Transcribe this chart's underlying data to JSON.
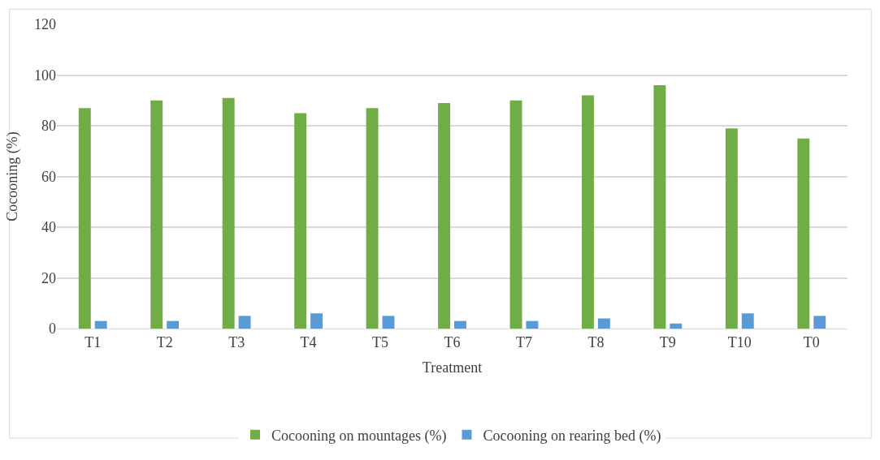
{
  "chart_data": {
    "type": "bar",
    "xlabel": "Treatment",
    "ylabel": "Cocooning (%)",
    "categories": [
      "T1",
      "T2",
      "T3",
      "T4",
      "T5",
      "T6",
      "T7",
      "T8",
      "T9",
      "T10",
      "T0"
    ],
    "series": [
      {
        "name": "Cocooning on mountages (%)",
        "color": "#70ad47",
        "values": [
          87,
          90,
          91,
          85,
          87,
          89,
          90,
          92,
          96,
          79,
          75
        ]
      },
      {
        "name": "Cocooning on rearing bed (%)",
        "color": "#5b9bd5",
        "values": [
          3,
          3,
          5,
          6,
          5,
          3,
          3,
          4,
          2,
          6,
          5
        ]
      }
    ],
    "ylim": [
      0,
      120
    ],
    "yticks": [
      0,
      20,
      40,
      60,
      80,
      100,
      120
    ],
    "grid": "y",
    "legend": "bottom"
  }
}
